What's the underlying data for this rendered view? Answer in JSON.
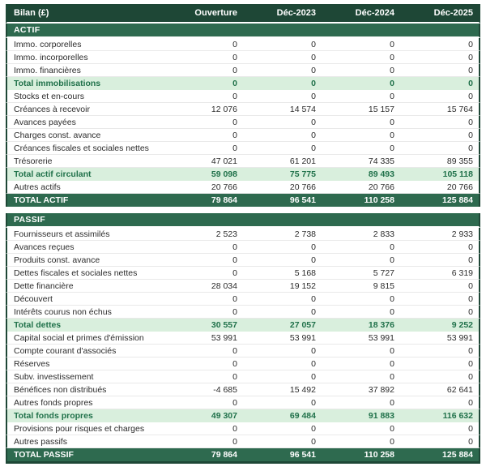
{
  "colors": {
    "header_bg": "#1e4736",
    "section_bg": "#2e6a4f",
    "subtotal_bg": "#d9efdd",
    "subtotal_text": "#20714a",
    "border": "#1e4736",
    "row_separator": "#e9e9e9",
    "body_text": "#2b2b2b"
  },
  "table": {
    "header": {
      "label": "Bilan (£)",
      "columns": [
        "Ouverture",
        "Déc-2023",
        "Déc-2024",
        "Déc-2025"
      ]
    },
    "rows": [
      {
        "type": "section",
        "label": "ACTIF",
        "values": [
          "",
          "",
          "",
          ""
        ]
      },
      {
        "type": "data",
        "label": "Immo. corporelles",
        "values": [
          "0",
          "0",
          "0",
          "0"
        ]
      },
      {
        "type": "data",
        "label": "Immo. incorporelles",
        "values": [
          "0",
          "0",
          "0",
          "0"
        ]
      },
      {
        "type": "data",
        "label": "Immo. financières",
        "values": [
          "0",
          "0",
          "0",
          "0"
        ]
      },
      {
        "type": "subtotal",
        "label": "Total immobilisations",
        "values": [
          "0",
          "0",
          "0",
          "0"
        ]
      },
      {
        "type": "data",
        "label": "Stocks et en-cours",
        "values": [
          "0",
          "0",
          "0",
          "0"
        ]
      },
      {
        "type": "data",
        "label": "Créances à recevoir",
        "values": [
          "12 076",
          "14 574",
          "15 157",
          "15 764"
        ]
      },
      {
        "type": "data",
        "label": "Avances payées",
        "values": [
          "0",
          "0",
          "0",
          "0"
        ]
      },
      {
        "type": "data",
        "label": "Charges const. avance",
        "values": [
          "0",
          "0",
          "0",
          "0"
        ]
      },
      {
        "type": "data",
        "label": "Créances fiscales et sociales nettes",
        "values": [
          "0",
          "0",
          "0",
          "0"
        ]
      },
      {
        "type": "data",
        "label": "Trésorerie",
        "values": [
          "47 021",
          "61 201",
          "74 335",
          "89 355"
        ]
      },
      {
        "type": "subtotal",
        "label": "Total actif circulant",
        "values": [
          "59 098",
          "75 775",
          "89 493",
          "105 118"
        ]
      },
      {
        "type": "data",
        "label": "Autres actifs",
        "values": [
          "20 766",
          "20 766",
          "20 766",
          "20 766"
        ]
      },
      {
        "type": "total",
        "label": "TOTAL ACTIF",
        "values": [
          "79 864",
          "96 541",
          "110 258",
          "125 884"
        ]
      },
      {
        "type": "gap",
        "label": "",
        "values": [
          "",
          "",
          "",
          ""
        ]
      },
      {
        "type": "section",
        "label": "PASSIF",
        "values": [
          "",
          "",
          "",
          ""
        ]
      },
      {
        "type": "data",
        "label": "Fournisseurs et assimilés",
        "values": [
          "2 523",
          "2 738",
          "2 833",
          "2 933"
        ]
      },
      {
        "type": "data",
        "label": "Avances reçues",
        "values": [
          "0",
          "0",
          "0",
          "0"
        ]
      },
      {
        "type": "data",
        "label": "Produits const. avance",
        "values": [
          "0",
          "0",
          "0",
          "0"
        ]
      },
      {
        "type": "data",
        "label": "Dettes fiscales et sociales nettes",
        "values": [
          "0",
          "5 168",
          "5 727",
          "6 319"
        ]
      },
      {
        "type": "data",
        "label": "Dette financière",
        "values": [
          "28 034",
          "19 152",
          "9 815",
          "0"
        ]
      },
      {
        "type": "data",
        "label": "Découvert",
        "values": [
          "0",
          "0",
          "0",
          "0"
        ]
      },
      {
        "type": "data",
        "label": "Intérêts courus non échus",
        "values": [
          "0",
          "0",
          "0",
          "0"
        ]
      },
      {
        "type": "subtotal",
        "label": "Total dettes",
        "values": [
          "30 557",
          "27 057",
          "18 376",
          "9 252"
        ]
      },
      {
        "type": "data",
        "label": "Capital social et primes d'émission",
        "values": [
          "53 991",
          "53 991",
          "53 991",
          "53 991"
        ]
      },
      {
        "type": "data",
        "label": "Compte courant d'associés",
        "values": [
          "0",
          "0",
          "0",
          "0"
        ]
      },
      {
        "type": "data",
        "label": "Réserves",
        "values": [
          "0",
          "0",
          "0",
          "0"
        ]
      },
      {
        "type": "data",
        "label": "Subv. investissement",
        "values": [
          "0",
          "0",
          "0",
          "0"
        ]
      },
      {
        "type": "data",
        "label": "Bénéfices non distribués",
        "values": [
          "-4 685",
          "15 492",
          "37 892",
          "62 641"
        ]
      },
      {
        "type": "data",
        "label": "Autres fonds propres",
        "values": [
          "0",
          "0",
          "0",
          "0"
        ]
      },
      {
        "type": "subtotal",
        "label": "Total fonds propres",
        "values": [
          "49 307",
          "69 484",
          "91 883",
          "116 632"
        ]
      },
      {
        "type": "data",
        "label": "Provisions pour risques et charges",
        "values": [
          "0",
          "0",
          "0",
          "0"
        ]
      },
      {
        "type": "data",
        "label": "Autres passifs",
        "values": [
          "0",
          "0",
          "0",
          "0"
        ]
      },
      {
        "type": "total",
        "label": "TOTAL PASSIF",
        "values": [
          "79 864",
          "96 541",
          "110 258",
          "125 884"
        ]
      }
    ]
  }
}
